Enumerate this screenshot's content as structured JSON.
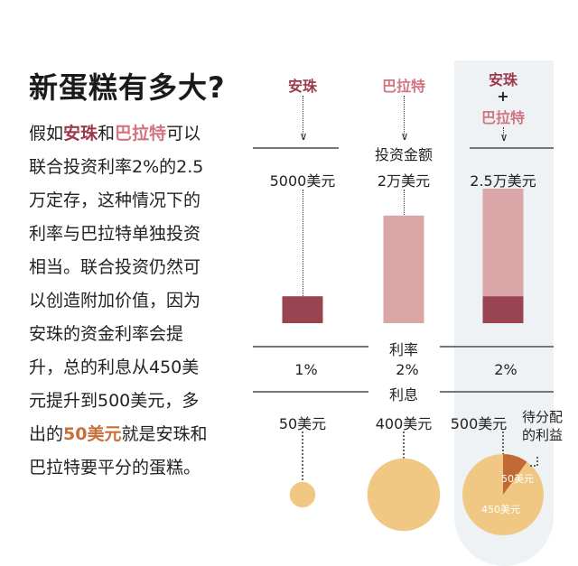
{
  "title": "新蛋糕有多大?",
  "body_lines": [
    [
      {
        "t": "假如",
        "c": ""
      },
      {
        "t": "安珠",
        "c": "an"
      },
      {
        "t": "和",
        "c": ""
      },
      {
        "t": "巴拉特",
        "c": "ba"
      },
      {
        "t": "可以",
        "c": ""
      }
    ],
    [
      {
        "t": "联合投资利率2%的2.5",
        "c": ""
      }
    ],
    [
      {
        "t": "万定存，这种情况下的",
        "c": ""
      }
    ],
    [
      {
        "t": "利率与巴拉特单独投资",
        "c": ""
      }
    ],
    [
      {
        "t": "相当。联合投资仍然可",
        "c": ""
      }
    ],
    [
      {
        "t": "以创造附加价值，因为",
        "c": ""
      }
    ],
    [
      {
        "t": "安珠的资金利率会提",
        "c": ""
      }
    ],
    [
      {
        "t": "升，总的利息从450美",
        "c": ""
      }
    ],
    [
      {
        "t": "元提升到500美元，多",
        "c": ""
      }
    ],
    [
      {
        "t": "出的",
        "c": ""
      },
      {
        "t": "50美元",
        "c": "or"
      },
      {
        "t": "就是安珠和",
        "c": ""
      }
    ],
    [
      {
        "t": "巴拉特要平分的蛋糕。",
        "c": ""
      }
    ]
  ],
  "columns": [
    {
      "name": "安珠",
      "amount": "5000美元",
      "rate": "1%",
      "interest": "50美元"
    },
    {
      "name": "巴拉特",
      "amount": "2万美元",
      "rate": "2%",
      "interest": "400美元"
    },
    {
      "name_a": "安珠",
      "plus": "+",
      "name_b": "巴拉特",
      "amount": "2.5万美元",
      "rate": "2%",
      "interest": "500美元"
    }
  ],
  "row_labels": {
    "amount": "投资金额",
    "rate": "利率",
    "interest": "利息"
  },
  "pie": {
    "share": "50美元",
    "rest": "450美元",
    "note": "待分配的利益",
    "share_value": 50,
    "total_value": 500
  },
  "amount_values": [
    5000,
    20000,
    25000
  ],
  "interest_values": [
    50,
    400,
    500
  ],
  "colors": {
    "anzhu": "#9b3a4a",
    "balate": "#d47482",
    "anzhu_bar": "#9a4452",
    "balate_bar": "#dba6a6",
    "circle": "#f0c884",
    "wedge": "#c26a36",
    "highlight": "#c8703a",
    "panel": "#eef2f4"
  }
}
